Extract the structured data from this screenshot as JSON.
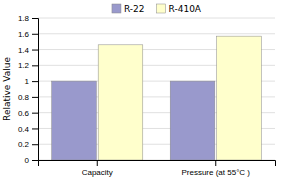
{
  "chart_data": {
    "type": "bar",
    "categories": [
      "Capacity",
      "Pressure (at 55°C )"
    ],
    "series": [
      {
        "name": "R-22",
        "color": "#9999cc",
        "values": [
          1.0,
          1.0
        ]
      },
      {
        "name": "R-410A",
        "color": "#ffffcc",
        "values": [
          1.46,
          1.57
        ]
      }
    ],
    "ylabel": "Relative Value",
    "ylim": [
      0,
      1.8
    ],
    "yticks": [
      0,
      0.2,
      0.4,
      0.6,
      0.8,
      1,
      1.2,
      1.4,
      1.6,
      1.8
    ],
    "grid": true,
    "legend": "top"
  }
}
